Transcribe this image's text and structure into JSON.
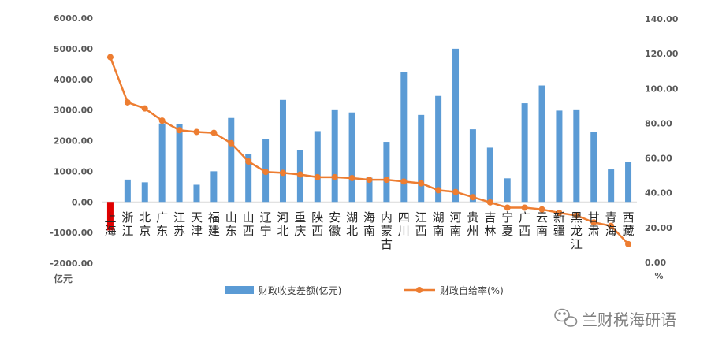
{
  "chart_data": {
    "type": "bar",
    "categories": [
      "上海",
      "浙江",
      "北京",
      "广东",
      "江苏",
      "天津",
      "福建",
      "山东",
      "山西",
      "辽宁",
      "河北",
      "重庆",
      "陕西",
      "安徽",
      "湖北",
      "海南",
      "内蒙古",
      "四川",
      "江西",
      "湖南",
      "河南",
      "贵州",
      "吉林",
      "宁夏",
      "广西",
      "云南",
      "新疆",
      "黑龙江",
      "甘肃",
      "青海",
      "西藏"
    ],
    "series": [
      {
        "name": "财政收支差额(亿元)",
        "kind": "bar",
        "axis": "left",
        "color": "#5b9bd5",
        "values": [
          -930,
          730,
          640,
          2560,
          2550,
          560,
          1000,
          2740,
          1560,
          2040,
          3330,
          1680,
          2310,
          3020,
          2920,
          790,
          1960,
          4250,
          2840,
          3460,
          5000,
          2370,
          1770,
          770,
          3220,
          3800,
          2980,
          3020,
          2270,
          1060,
          1310
        ]
      },
      {
        "name": "财政自给率(%)",
        "kind": "line",
        "axis": "right",
        "color": "#ed7d31",
        "values": [
          118,
          92,
          88.5,
          81.5,
          76,
          75,
          74.5,
          68.5,
          58,
          52,
          51.5,
          50.5,
          49,
          49,
          48.5,
          47.5,
          47.5,
          46.5,
          45.5,
          41.5,
          40.5,
          37.5,
          34.5,
          31.5,
          31.5,
          30.5,
          28.5,
          27,
          23,
          21,
          10.5
        ]
      }
    ],
    "y_left": {
      "min": -2000,
      "max": 6000,
      "step": 1000,
      "ticks": [
        "-2000.00",
        "-1000.00",
        "0.00",
        "1000.00",
        "2000.00",
        "3000.00",
        "4000.00",
        "5000.00",
        "6000.00"
      ],
      "unit": "亿元"
    },
    "y_right": {
      "min": 0,
      "max": 140,
      "step": 20,
      "ticks": [
        "0.00",
        "20.00",
        "40.00",
        "60.00",
        "80.00",
        "100.00",
        "120.00",
        "140.00"
      ],
      "unit": "%"
    },
    "highlight_bar_color": "#e00000",
    "grid": false,
    "legend_position": "bottom"
  },
  "watermark": {
    "text": "兰财税海研语"
  }
}
